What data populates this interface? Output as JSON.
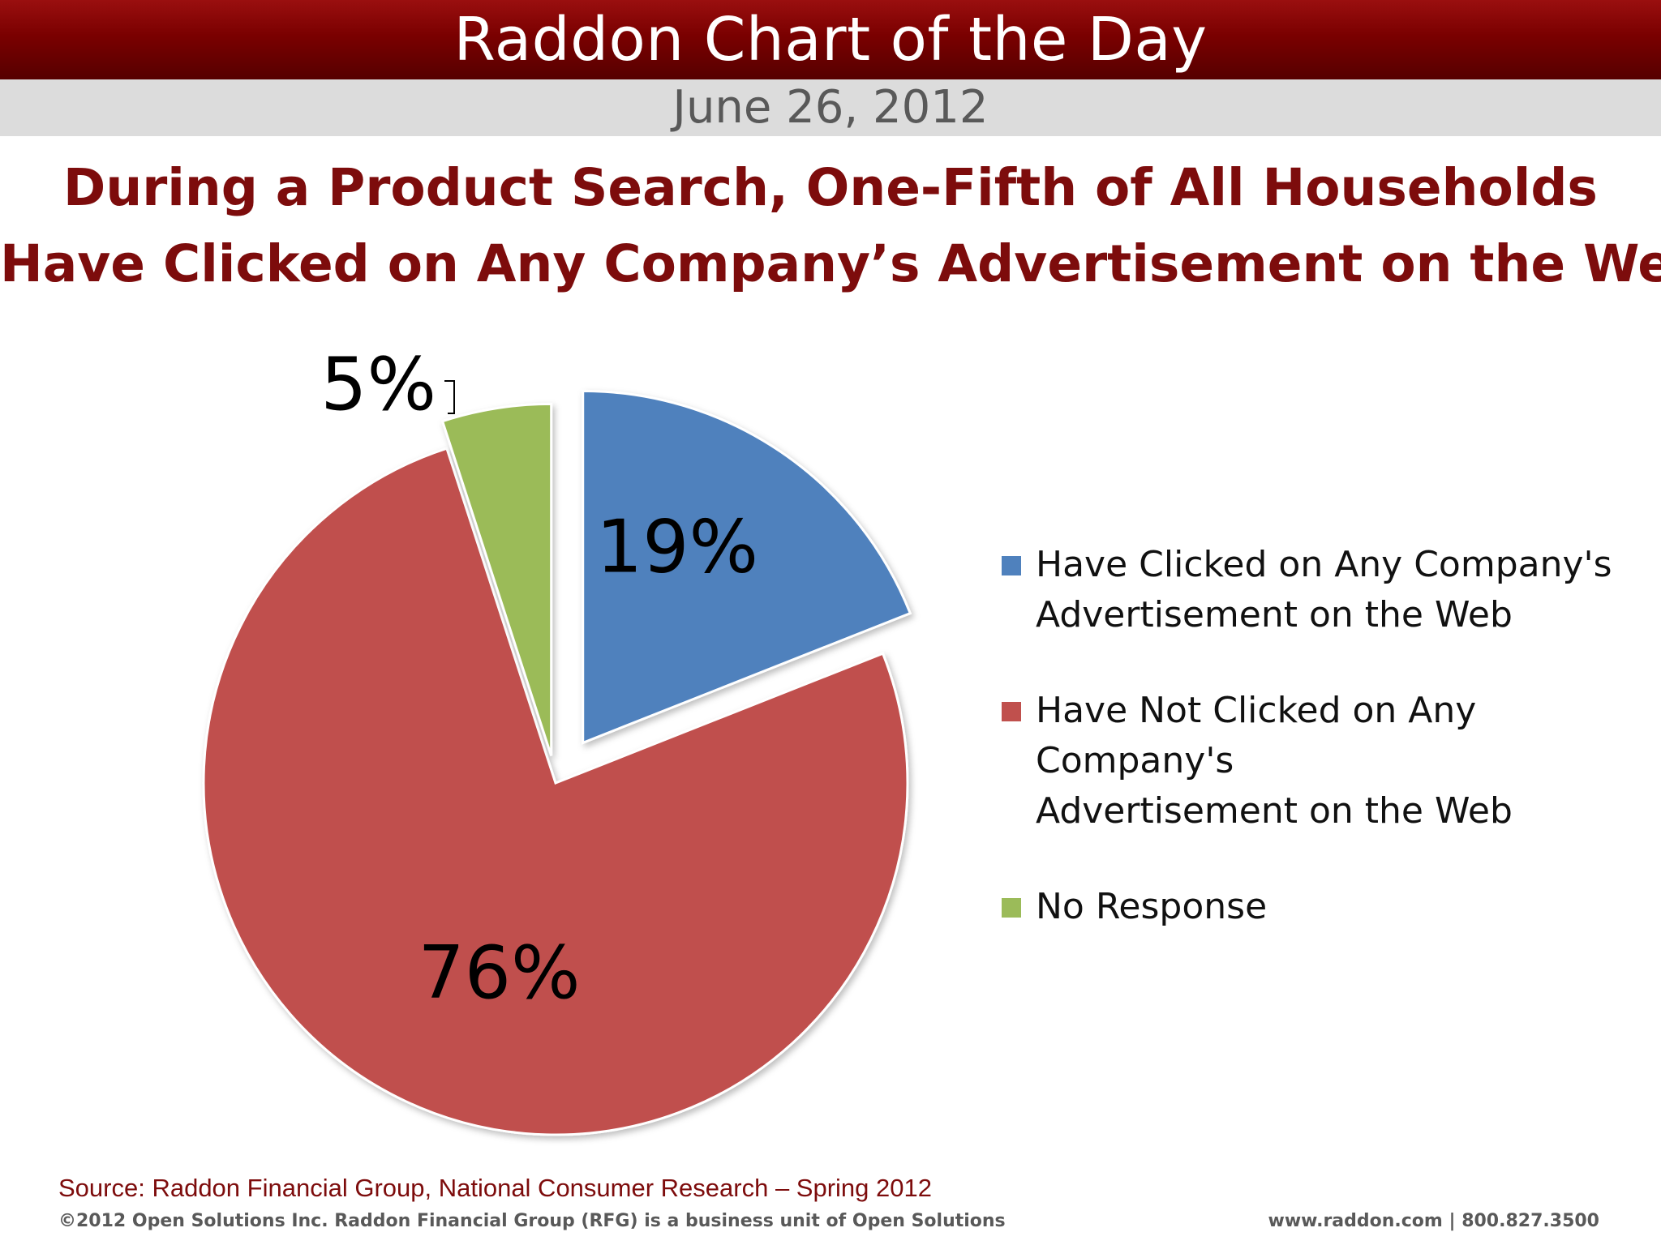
{
  "header": {
    "title": "Raddon Chart of the Day",
    "date": "June 26, 2012"
  },
  "headline": {
    "line1": "During a Product Search, One-Fifth of All Households",
    "line2": "Have Clicked on Any Company’s Advertisement on the Web"
  },
  "chart_data": {
    "type": "pie",
    "title": "During a Product Search, One-Fifth of All Households Have Clicked on Any Company’s Advertisement on the Web",
    "legend_position": "right",
    "slices": [
      {
        "label": "Have Clicked on Any Company's\nAdvertisement on the Web",
        "value": 19,
        "display": "19%",
        "color": "#4f81bd"
      },
      {
        "label": "Have Not Clicked on Any Company's\nAdvertisement on the Web",
        "value": 76,
        "display": "76%",
        "color": "#c0504d"
      },
      {
        "label": "No Response",
        "value": 5,
        "display": "5%",
        "color": "#9bbb59"
      }
    ]
  },
  "footer": {
    "source": "Source: Raddon Financial Group, National Consumer Research – Spring 2012",
    "copyright": "©2012 Open Solutions Inc.  Raddon Financial Group (RFG) is a business unit of Open Solutions",
    "contact": "www.raddon.com  |  800.827.3500"
  }
}
